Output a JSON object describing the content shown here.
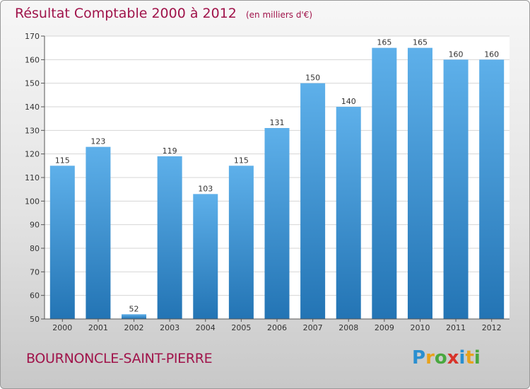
{
  "header": {
    "title": "Résultat Comptable 2000 à 2012",
    "subtitle": "(en milliers d'€)"
  },
  "footer": {
    "commune": "BOURNONCLE-SAINT-PIERRE",
    "logo_text": "Proxiti"
  },
  "colors": {
    "bar_top": "#5eb0ea",
    "bar_bottom": "#2374b4",
    "title": "#a0134a",
    "grid": "#d6d6d6",
    "axis": "#555555"
  },
  "chart_data": {
    "type": "bar",
    "title": "Résultat Comptable 2000 à 2012",
    "subtitle": "(en milliers d'€)",
    "xlabel": "",
    "ylabel": "",
    "categories": [
      "2000",
      "2001",
      "2002",
      "2003",
      "2004",
      "2005",
      "2006",
      "2007",
      "2008",
      "2009",
      "2010",
      "2011",
      "2012"
    ],
    "values": [
      115,
      123,
      52,
      119,
      103,
      115,
      131,
      150,
      140,
      165,
      165,
      160,
      160
    ],
    "ylim": [
      50,
      170
    ],
    "yticks": [
      50,
      60,
      70,
      80,
      90,
      100,
      110,
      120,
      130,
      140,
      150,
      160,
      170
    ],
    "grid": true,
    "legend": "none"
  }
}
